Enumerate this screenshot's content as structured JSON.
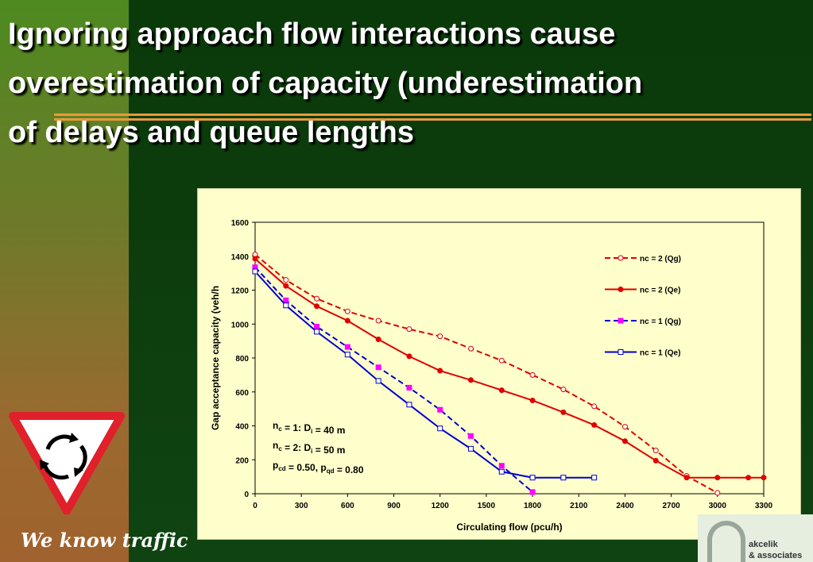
{
  "slide": {
    "title_lines": [
      "Ignoring approach flow interactions cause",
      "overestimation of capacity (underestimation",
      "of delays and queue lengths"
    ],
    "tagline": "We know traffic",
    "logo_lines": [
      "akcelik",
      "& associates"
    ]
  },
  "colors": {
    "red": "#e00000",
    "blue": "#0000cc",
    "magenta": "#ff00ff",
    "accent": "#e89a3a"
  },
  "icons": {
    "yield": "roundabout-yield-sign-icon",
    "logo": "akcelik-logo-icon"
  },
  "chart_data": {
    "type": "line",
    "xlabel": "Circulating flow (pcu/h)",
    "ylabel": "Gap acceptance capacity (veh/h",
    "xlim": [
      0,
      3300
    ],
    "ylim": [
      0,
      1600
    ],
    "xticks": [
      0,
      300,
      600,
      900,
      1200,
      1500,
      1800,
      2100,
      2400,
      2700,
      3000,
      3300
    ],
    "yticks": [
      0,
      200,
      400,
      600,
      800,
      1000,
      1200,
      1400,
      1600
    ],
    "legend_position": "top-right",
    "annotations": [
      {
        "base": "n",
        "sub": "c",
        "rest": " = 1: D",
        "sub2": "i",
        "rest2": " = 40 m"
      },
      {
        "base": "n",
        "sub": "c",
        "rest": " = 2: D",
        "sub2": "i",
        "rest2": " = 50 m"
      },
      {
        "base": "p",
        "sub": "cd",
        "rest": " = 0.50, p",
        "sub2": "qd",
        "rest2": " = 0.80"
      }
    ],
    "series": [
      {
        "name": "nc = 2 (Qg)",
        "x": [
          0,
          200,
          400,
          600,
          800,
          1000,
          1200,
          1400,
          1600,
          1800,
          2000,
          2200,
          2400,
          2600,
          2800,
          3000
        ],
        "y": [
          1410,
          1260,
          1150,
          1075,
          1020,
          970,
          928,
          855,
          785,
          700,
          615,
          515,
          395,
          255,
          105,
          5
        ]
      },
      {
        "name": "nc = 2 (Qe)",
        "x": [
          0,
          200,
          400,
          600,
          800,
          1000,
          1200,
          1400,
          1600,
          1800,
          2000,
          2200,
          2400,
          2600,
          2800,
          3000,
          3200,
          3300
        ],
        "y": [
          1385,
          1225,
          1105,
          1020,
          910,
          810,
          725,
          670,
          610,
          550,
          480,
          405,
          310,
          195,
          95,
          95,
          95,
          95
        ]
      },
      {
        "name": "nc = 1 (Qg)",
        "x": [
          0,
          200,
          400,
          600,
          800,
          1000,
          1200,
          1400,
          1600,
          1800
        ],
        "y": [
          1335,
          1140,
          985,
          865,
          745,
          625,
          495,
          340,
          165,
          10
        ]
      },
      {
        "name": "nc = 1 (Qe)",
        "x": [
          0,
          200,
          400,
          600,
          800,
          1000,
          1200,
          1400,
          1600,
          1800,
          2000,
          2200
        ],
        "y": [
          1310,
          1110,
          955,
          820,
          665,
          525,
          385,
          265,
          130,
          95,
          95,
          95
        ]
      }
    ]
  }
}
